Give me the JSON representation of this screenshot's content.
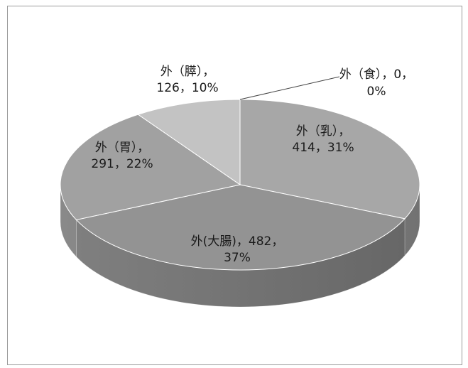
{
  "chart_data": {
    "type": "pie",
    "style": "3d-exploded-grayscale",
    "title": "",
    "slices": [
      {
        "category": "外（乳）",
        "value": 414,
        "percent": 31,
        "label_line1": "外（乳），",
        "label_line2": "414，31%",
        "color": "#a7a7a7",
        "side": "#8a8a8a"
      },
      {
        "category": "外(大腸)",
        "value": 482,
        "percent": 37,
        "label_line1": "外(大腸)，482，",
        "label_line2": "37%",
        "color": "#939393",
        "side": "#6e6e6e"
      },
      {
        "category": "外（胃）",
        "value": 291,
        "percent": 22,
        "label_line1": "外（胃），",
        "label_line2": "291，22%",
        "color": "#a1a1a1",
        "side": "#828282"
      },
      {
        "category": "外（膵）",
        "value": 126,
        "percent": 10,
        "label_line1": "外（膵），",
        "label_line2": "126，10%",
        "color": "#c3c3c3",
        "side": "#a4a4a4"
      },
      {
        "category": "外（食）",
        "value": 0,
        "percent": 0,
        "label_line1": "外（食），0，",
        "label_line2": "0%",
        "color": "#d2d2d2",
        "side": "#b5b5b5"
      }
    ]
  }
}
